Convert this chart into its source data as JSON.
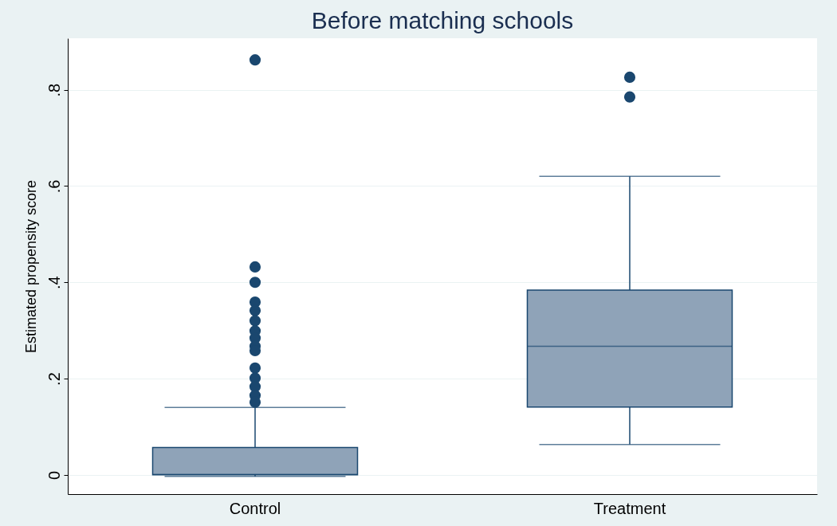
{
  "chart_data": {
    "type": "box",
    "title": "Before matching schools",
    "ylabel": "Estimated propensity score",
    "categories": [
      "Control",
      "Treatment"
    ],
    "boxes": [
      {
        "low": -0.003,
        "q1": 0.0,
        "median": 0.001,
        "q3": 0.057,
        "high": 0.14,
        "outliers": [
          0.862,
          0.432,
          0.4,
          0.359,
          0.341,
          0.32,
          0.299,
          0.284,
          0.267,
          0.258,
          0.222,
          0.201,
          0.183,
          0.165,
          0.151
        ]
      },
      {
        "low": 0.063,
        "q1": 0.141,
        "median": 0.267,
        "q3": 0.384,
        "high": 0.62,
        "outliers": [
          0.826,
          0.785
        ]
      }
    ],
    "color": "#8fa3b8",
    "ylim": [
      -0.04,
      0.907
    ],
    "yticks": [
      0,
      {
        "value": 0.2,
        "label": ".2"
      },
      {
        "value": 0.4,
        "label": ".4"
      },
      {
        "value": 0.6,
        "label": ".6"
      },
      {
        "value": 0.8,
        "label": ".8"
      }
    ],
    "grid": "y"
  }
}
